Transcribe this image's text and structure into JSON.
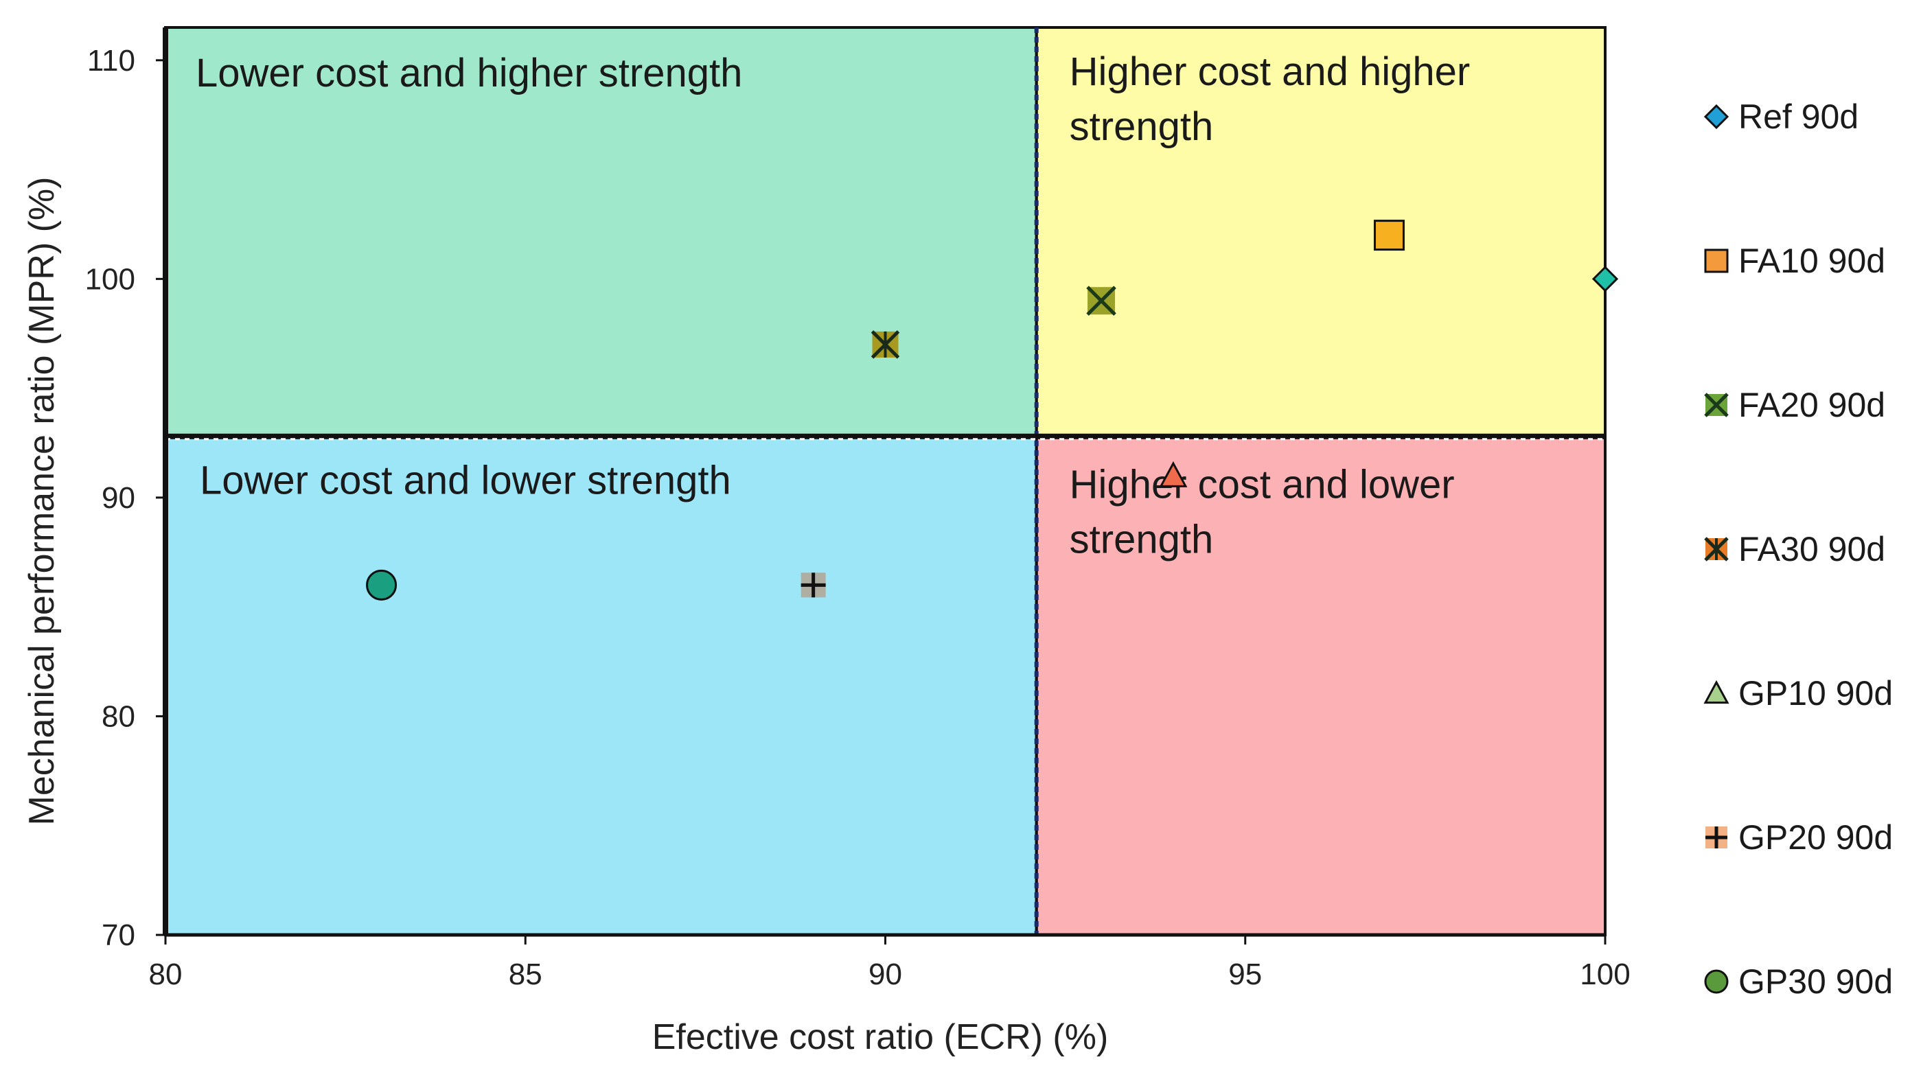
{
  "chart_data": {
    "type": "scatter",
    "title": "",
    "xlabel": "Efective cost ratio (ECR) (%)",
    "ylabel": "Mechanical performance ratio (MPR) (%)",
    "xlim": [
      80,
      100
    ],
    "ylim": [
      70,
      111.5
    ],
    "xticks": [
      80,
      85,
      90,
      95,
      100
    ],
    "yticks": [
      70,
      80,
      90,
      100,
      110
    ],
    "threshold_x": 92.1,
    "threshold_y": 92.8,
    "quadrants": [
      {
        "key": "tl",
        "lines": [
          "Lower cost and higher strength"
        ],
        "color": "#a0e8cc"
      },
      {
        "key": "tr",
        "lines": [
          "Higher cost and higher",
          "strength"
        ],
        "color": "#fffca8"
      },
      {
        "key": "bl",
        "lines": [
          "Lower cost and lower strength"
        ],
        "color": "#9ce6f8"
      },
      {
        "key": "br",
        "lines": [
          "Higher cost and lower",
          "strength"
        ],
        "color": "#fcb2b4"
      }
    ],
    "series": [
      {
        "name": "Ref 90d",
        "marker": "diamond",
        "x": 100,
        "y": 100,
        "color": "#21a0d8",
        "plot_color": "#20c0a8"
      },
      {
        "name": "FA10 90d",
        "marker": "square",
        "x": 97,
        "y": 102,
        "color": "#f39a3c",
        "plot_color": "#f6b020"
      },
      {
        "name": "FA20 90d",
        "marker": "x-box",
        "x": 93,
        "y": 99,
        "color": "#6ba53a",
        "plot_color": "#9aa228"
      },
      {
        "name": "FA30 90d",
        "marker": "star-x",
        "x": 90,
        "y": 97,
        "color": "#e87c28",
        "plot_color": "#a89a20"
      },
      {
        "name": "GP10 90d",
        "marker": "triangle",
        "x": 94,
        "y": 91,
        "color": "#a9d18e",
        "plot_color": "#f06a4c"
      },
      {
        "name": "GP20 90d",
        "marker": "plus",
        "x": 89,
        "y": 86,
        "color": "#f4b183",
        "plot_color": "#b0aea2"
      },
      {
        "name": "GP30 90d",
        "marker": "circle",
        "x": 83,
        "y": 86,
        "color": "#5a9a3c",
        "plot_color": "#1aa080"
      }
    ],
    "legend_position": "right",
    "grid": false
  }
}
